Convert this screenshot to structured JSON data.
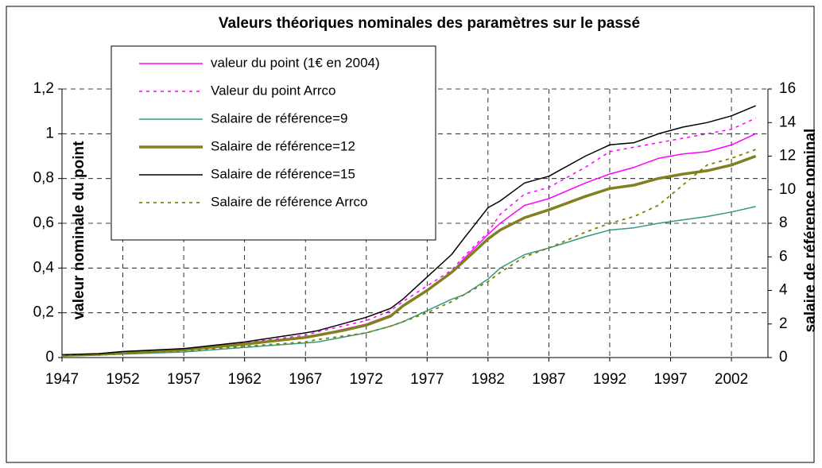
{
  "chart_data": {
    "type": "line",
    "title": "Valeurs théoriques nominales des paramètres sur le passé",
    "y_label": "valeur nominale du point",
    "y2_label": "salaire de référence nominal",
    "x": [
      1947,
      1950,
      1952,
      1957,
      1962,
      1967,
      1968,
      1970,
      1972,
      1974,
      1975,
      1977,
      1979,
      1980,
      1982,
      1983,
      1985,
      1987,
      1990,
      1992,
      1994,
      1996,
      1998,
      2000,
      2002,
      2004
    ],
    "xlim": [
      1947,
      2005
    ],
    "xticks": [
      1947,
      1952,
      1957,
      1962,
      1967,
      1972,
      1977,
      1982,
      1987,
      1992,
      1997,
      2002
    ],
    "ylim": [
      0,
      1.2
    ],
    "yticks": [
      0,
      {
        "value": 0.2,
        "label": "0,2"
      },
      {
        "value": 0.4,
        "label": "0,4"
      },
      {
        "value": 0.6,
        "label": "0,6"
      },
      {
        "value": 0.8,
        "label": "0,8"
      },
      1,
      {
        "value": 1.2,
        "label": "1,2"
      }
    ],
    "y2lim": [
      0,
      16
    ],
    "y2ticks": [
      0,
      2,
      4,
      6,
      8,
      10,
      12,
      14,
      16
    ],
    "grid": true,
    "legend": "top-left",
    "series": [
      {
        "name": "valeur du point (1€ en 2004)",
        "color": "#ff00ff",
        "dash": false,
        "width": 1.5,
        "values": [
          0.01,
          0.013,
          0.02,
          0.035,
          0.06,
          0.09,
          0.1,
          0.125,
          0.15,
          0.19,
          0.23,
          0.3,
          0.38,
          0.44,
          0.55,
          0.6,
          0.68,
          0.71,
          0.78,
          0.82,
          0.85,
          0.89,
          0.91,
          0.92,
          0.95,
          1.0
        ]
      },
      {
        "name": "Valeur du point Arrco",
        "color": "#ff00ff",
        "dash": true,
        "width": 1.5,
        "values": [
          0.01,
          0.014,
          0.022,
          0.04,
          0.065,
          0.1,
          0.115,
          0.14,
          0.165,
          0.21,
          0.25,
          0.32,
          0.39,
          0.45,
          0.56,
          0.64,
          0.73,
          0.76,
          0.85,
          0.92,
          0.94,
          0.96,
          0.98,
          1.0,
          1.02,
          1.07
        ]
      },
      {
        "name": "Salaire de référence=9",
        "color": "#339980",
        "dash": false,
        "width": 1.5,
        "axis": "y2",
        "values": [
          0.11,
          0.15,
          0.21,
          0.33,
          0.6,
          0.87,
          0.93,
          1.2,
          1.47,
          1.87,
          2.13,
          2.8,
          3.47,
          3.73,
          4.67,
          5.33,
          6.13,
          6.53,
          7.2,
          7.6,
          7.73,
          8,
          8.2,
          8.4,
          8.67,
          9
        ]
      },
      {
        "name": "Salaire de référence=12",
        "color": "#808020",
        "dash": false,
        "width": 3.5,
        "axis": "y2",
        "values": [
          0.13,
          0.19,
          0.29,
          0.47,
          0.8,
          1.2,
          1.33,
          1.6,
          1.93,
          2.47,
          3.07,
          4,
          5.07,
          5.73,
          7.07,
          7.6,
          8.33,
          8.8,
          9.6,
          10.07,
          10.27,
          10.67,
          10.93,
          11.13,
          11.47,
          12
        ]
      },
      {
        "name": "Salaire de référence=15",
        "color": "#000000",
        "dash": false,
        "width": 1.5,
        "axis": "y2",
        "values": [
          0.16,
          0.23,
          0.36,
          0.53,
          0.93,
          1.47,
          1.6,
          2,
          2.4,
          2.93,
          3.47,
          4.8,
          6.13,
          7.07,
          8.93,
          9.33,
          10.4,
          10.8,
          12,
          12.67,
          12.8,
          13.33,
          13.73,
          14,
          14.4,
          15
        ]
      },
      {
        "name": "Salaire de référence Arrco",
        "color": "#808000",
        "dash": true,
        "width": 1.8,
        "axis": "y2",
        "values": [
          0.11,
          0.15,
          0.21,
          0.4,
          0.67,
          0.93,
          1.07,
          1.27,
          1.47,
          1.87,
          2.13,
          2.67,
          3.33,
          3.73,
          4.53,
          5.07,
          6,
          6.53,
          7.47,
          8,
          8.4,
          9.07,
          10.27,
          11.47,
          11.87,
          12.4
        ]
      }
    ]
  }
}
